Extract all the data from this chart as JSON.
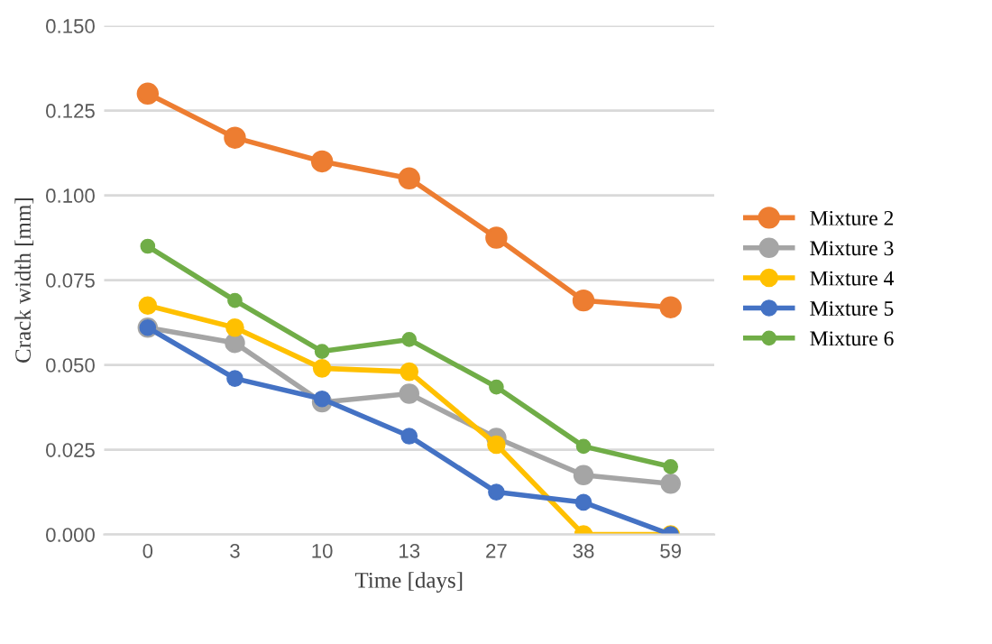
{
  "chart_data": {
    "type": "line",
    "xlabel": "Time [days]",
    "ylabel": "Crack width [mm]",
    "categories": [
      "0",
      "3",
      "10",
      "13",
      "27",
      "38",
      "59"
    ],
    "series": [
      {
        "name": "Mixture 2",
        "color": "#ed7d31",
        "values": [
          0.13,
          0.117,
          0.11,
          0.105,
          0.0875,
          0.069,
          0.067
        ]
      },
      {
        "name": "Mixture 3",
        "color": "#a5a5a5",
        "values": [
          0.061,
          0.0565,
          0.039,
          0.0415,
          0.0285,
          0.0175,
          0.015
        ]
      },
      {
        "name": "Mixture 4",
        "color": "#ffc000",
        "values": [
          0.0675,
          0.061,
          0.049,
          0.048,
          0.0265,
          0.0,
          0.0
        ]
      },
      {
        "name": "Mixture 5",
        "color": "#4472c4",
        "values": [
          0.061,
          0.046,
          0.04,
          0.029,
          0.0125,
          0.0095,
          0.0
        ]
      },
      {
        "name": "Mixture 6",
        "color": "#70ad47",
        "values": [
          0.085,
          0.069,
          0.054,
          0.0575,
          0.0435,
          0.026,
          0.02
        ]
      }
    ],
    "ylim": [
      0,
      0.15
    ],
    "yticks": [
      {
        "value": 0,
        "label": "0.000"
      },
      {
        "value": 0.025,
        "label": "0.025"
      },
      {
        "value": 0.05,
        "label": "0.050"
      },
      {
        "value": 0.075,
        "label": "0.075"
      },
      {
        "value": 0.1,
        "label": "0.100"
      },
      {
        "value": 0.125,
        "label": "0.125"
      },
      {
        "value": 0.15,
        "label": "0.150"
      }
    ],
    "grid": "y",
    "legend": "right",
    "marker": "circle",
    "line_style": "solid"
  }
}
